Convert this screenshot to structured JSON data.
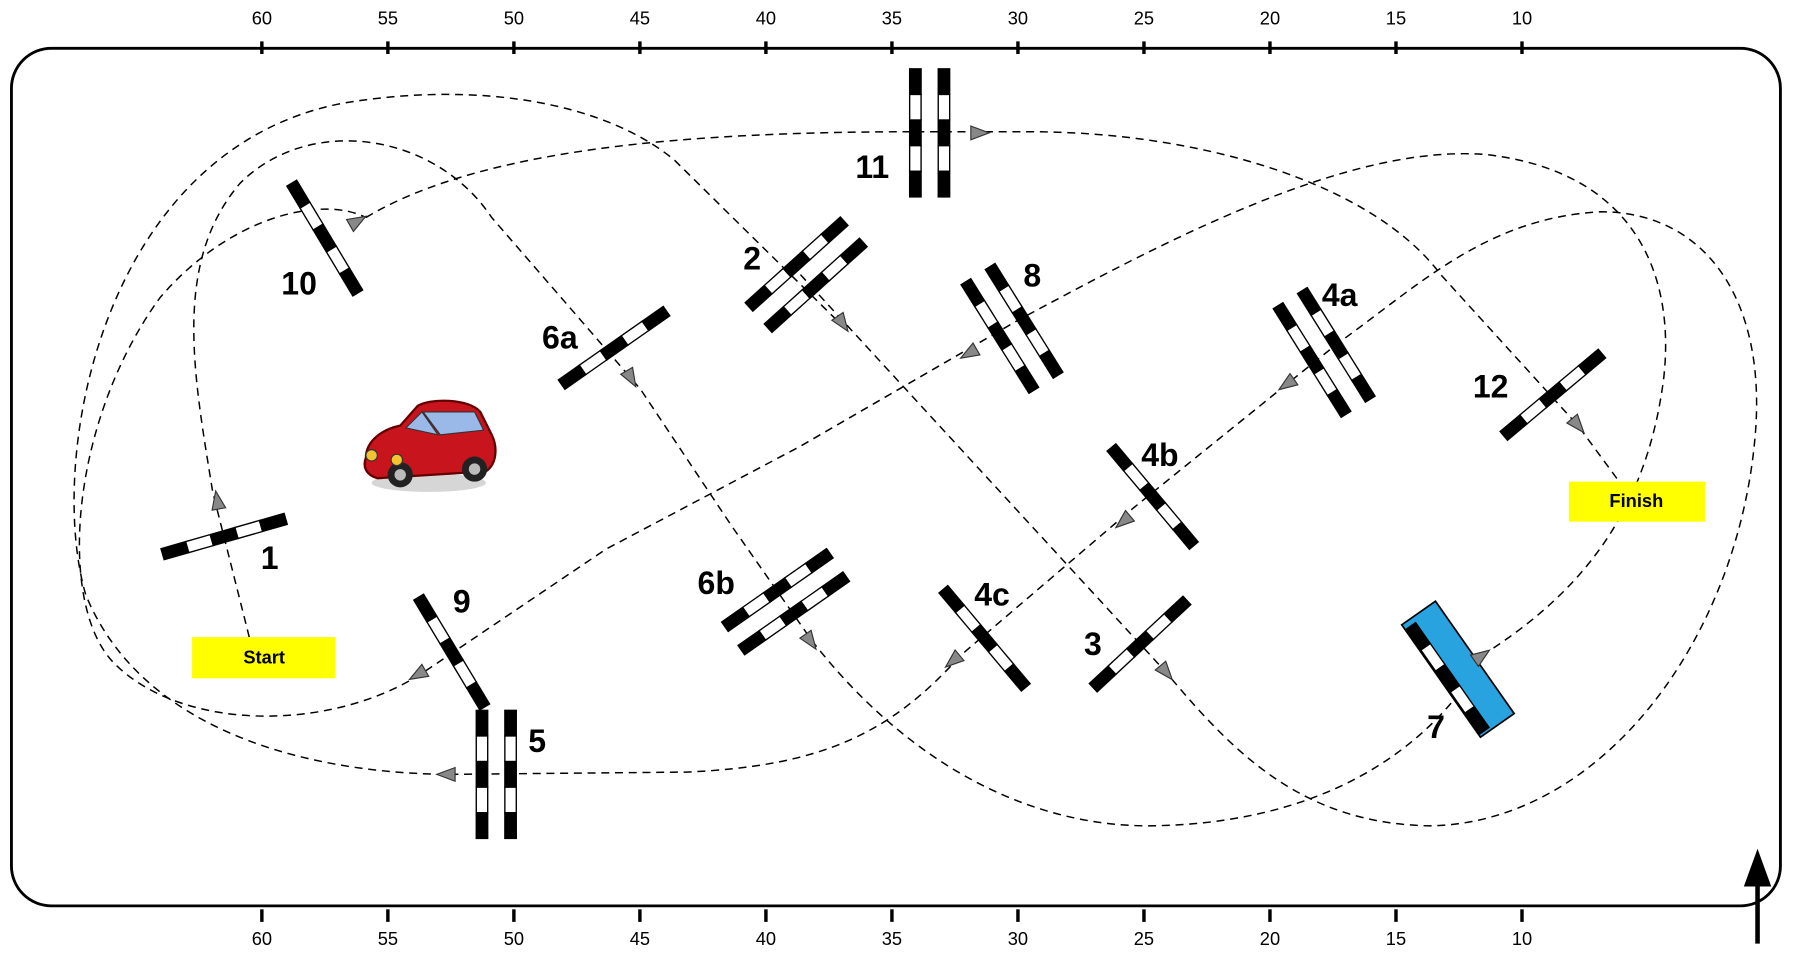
{
  "ruler": [
    60,
    55,
    50,
    45,
    40,
    35,
    30,
    25,
    20,
    15,
    10
  ],
  "gates": [
    "1",
    "2",
    "3",
    "4a",
    "4b",
    "4c",
    "5",
    "6a",
    "6b",
    "7",
    "8",
    "9",
    "10",
    "11",
    "12"
  ],
  "start": "Start",
  "finish": "Finish"
}
